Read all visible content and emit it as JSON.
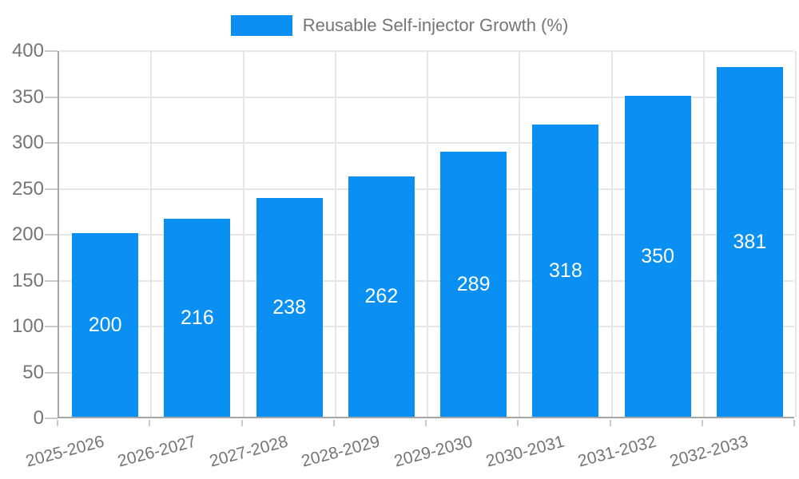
{
  "legend": {
    "label": "Reusable Self-injector Growth (%)"
  },
  "chart_data": {
    "type": "bar",
    "title": "",
    "series_name": "Reusable Self-injector Growth (%)",
    "categories": [
      "2025-2026",
      "2026-2027",
      "2027-2028",
      "2028-2029",
      "2029-2030",
      "2030-2031",
      "2031-2032",
      "2032-2033"
    ],
    "values": [
      200,
      216,
      238,
      262,
      289,
      318,
      350,
      381
    ],
    "value_labels": [
      "200",
      "216",
      "238",
      "262",
      "289",
      "318",
      "350",
      "381"
    ],
    "xlabel": "",
    "ylabel": "",
    "ylim": [
      0,
      400
    ],
    "yticks": [
      0,
      50,
      100,
      150,
      200,
      250,
      300,
      350,
      400
    ],
    "grid": true,
    "legend_position": "top-center",
    "colors": {
      "bar": "#0a8ff2",
      "value_label": "#ffffff",
      "axis_text": "#757575",
      "axis_line": "#a6a6a6",
      "gridline": "#e6e6e6",
      "tick": "#c9c9c9",
      "background": "#ffffff"
    }
  }
}
